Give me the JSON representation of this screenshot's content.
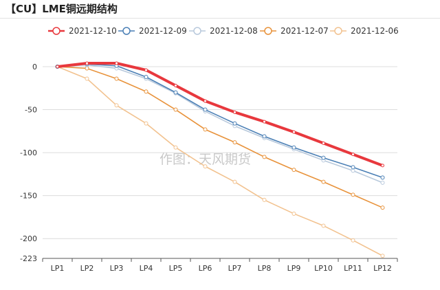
{
  "title": "【CU】LME铜远期结构",
  "watermark": "作图：天风期货",
  "chart_data": {
    "type": "line",
    "title": "【CU】LME铜远期结构",
    "categories": [
      "LP1",
      "LP2",
      "LP3",
      "LP4",
      "LP5",
      "LP6",
      "LP7",
      "LP8",
      "LP9",
      "LP10",
      "LP11",
      "LP12"
    ],
    "ylim": [
      -223,
      0
    ],
    "yticks": [
      0,
      -50,
      -100,
      -150,
      -200,
      -223
    ],
    "grid": true,
    "legend_position": "top",
    "series": [
      {
        "name": "2021-12-10",
        "color": "#e8383d",
        "emphasis": true,
        "values": [
          0,
          4,
          4,
          -4,
          -22,
          -40,
          -53,
          -64,
          -76,
          -89,
          -102,
          -115
        ]
      },
      {
        "name": "2021-12-09",
        "color": "#4a7fb5",
        "values": [
          0,
          3,
          1,
          -12,
          -30,
          -50,
          -66,
          -81,
          -94,
          -106,
          -117,
          -129
        ]
      },
      {
        "name": "2021-12-08",
        "color": "#b8c9dc",
        "values": [
          0,
          2,
          -2,
          -14,
          -31,
          -52,
          -69,
          -83,
          -96,
          -109,
          -121,
          -135
        ]
      },
      {
        "name": "2021-12-07",
        "color": "#e8923a",
        "values": [
          0,
          -2,
          -14,
          -29,
          -50,
          -73,
          -88,
          -105,
          -120,
          -134,
          -149,
          -164
        ]
      },
      {
        "name": "2021-12-06",
        "color": "#f2c28f",
        "values": [
          0,
          -14,
          -45,
          -66,
          -94,
          -116,
          -134,
          -155,
          -171,
          -185,
          -202,
          -220
        ]
      }
    ]
  }
}
